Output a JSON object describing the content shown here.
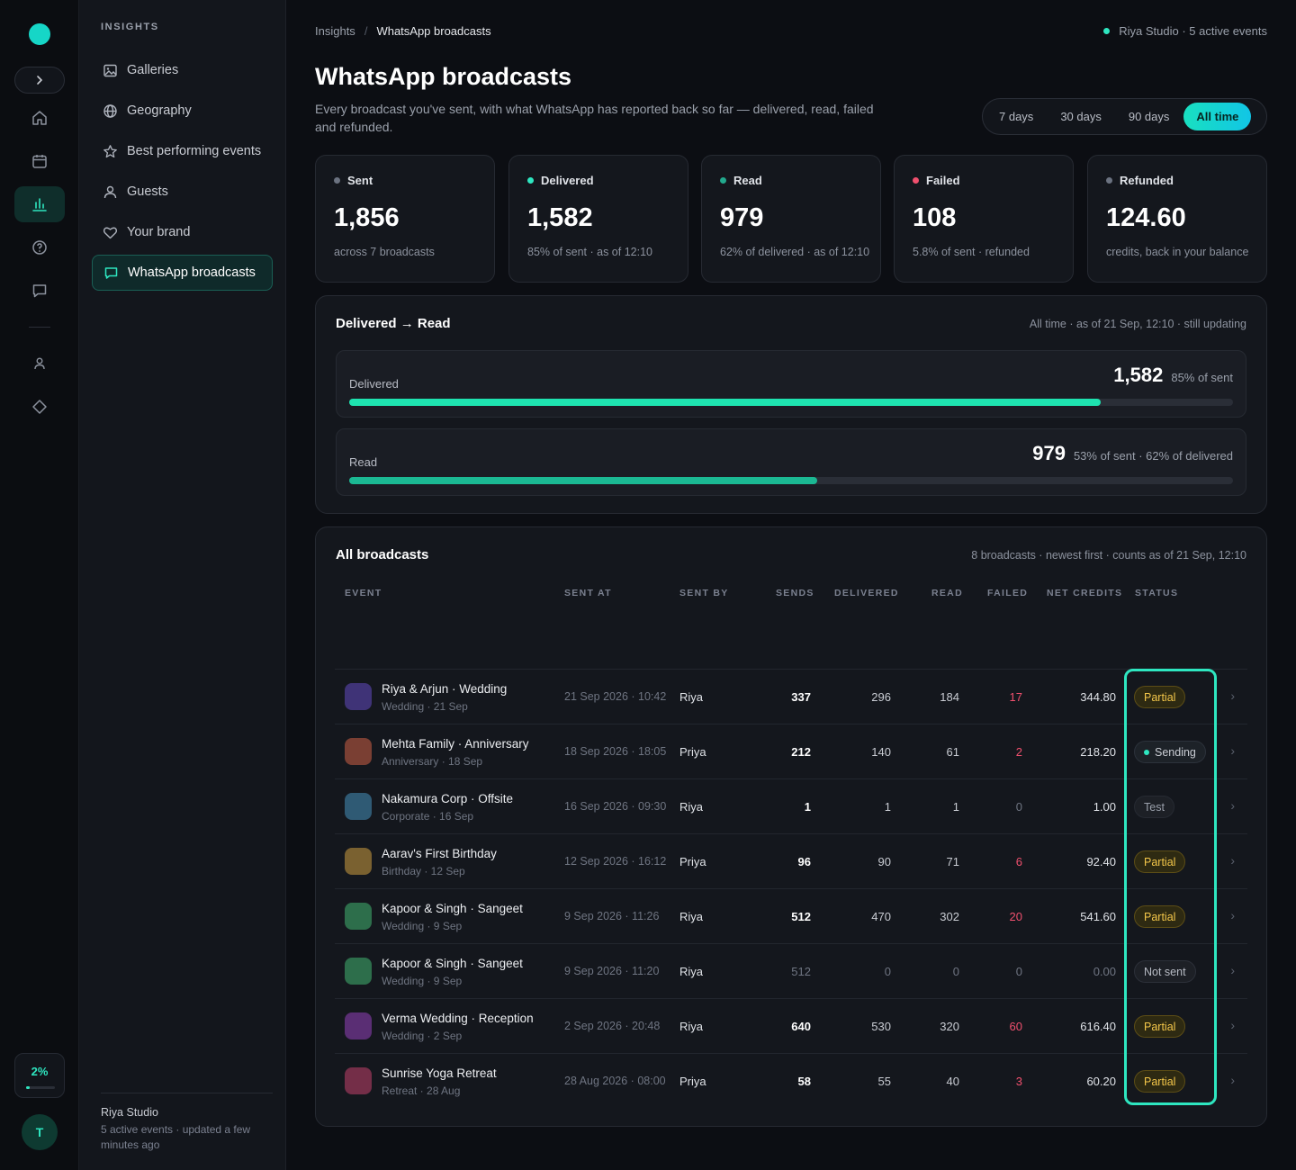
{
  "rail": {
    "usage": "2%",
    "usage_fraction": 0.02,
    "avatar_initial": "T"
  },
  "sidebar": {
    "section": "INSIGHTS",
    "items": [
      {
        "label": "Galleries",
        "icon": "image-icon"
      },
      {
        "label": "Geography",
        "icon": "globe-icon"
      },
      {
        "label": "Best performing events",
        "icon": "star-icon"
      },
      {
        "label": "Guests",
        "icon": "user-icon"
      },
      {
        "label": "Your brand",
        "icon": "heart-icon"
      },
      {
        "label": "WhatsApp broadcasts",
        "icon": "chat-icon",
        "active": true
      }
    ],
    "footer": {
      "org": "Riya Studio",
      "meta": "5 active events · updated a few minutes ago"
    }
  },
  "breadcrumb": {
    "parent": "Insights",
    "separator": "/",
    "current": "WhatsApp broadcasts"
  },
  "top_status": "Riya Studio · 5 active events",
  "page": {
    "title": "WhatsApp broadcasts",
    "subtitle": "Every broadcast you've sent, with what WhatsApp has reported back so far — delivered, read, failed and refunded."
  },
  "range": {
    "options": [
      "7 days",
      "30 days",
      "90 days",
      "All time"
    ],
    "selected": "All time"
  },
  "kpis": [
    {
      "label": "Sent",
      "value": "1,856",
      "note": "across 7 broadcasts",
      "color": "#6b7280"
    },
    {
      "label": "Delivered",
      "value": "1,582",
      "note": "85% of sent · as of 12:10",
      "color": "#2ee6c0"
    },
    {
      "label": "Read",
      "value": "979",
      "note": "62% of delivered · as of 12:10",
      "color": "#22a98d"
    },
    {
      "label": "Failed",
      "value": "108",
      "note": "5.8% of sent · refunded",
      "color": "#f0506e"
    },
    {
      "label": "Refunded",
      "value": "124.60",
      "note": "credits, back in your balance",
      "color": "#6b7280"
    }
  ],
  "funnel": {
    "title": "Delivered → Read",
    "meta": "All time · as of 21 Sep, 12:10 · still updating",
    "rows": [
      {
        "label": "Delivered",
        "value": "1,582",
        "sub": "85% of sent",
        "fraction": 0.85,
        "color": "#1ee3b0"
      },
      {
        "label": "Read",
        "value": "979",
        "sub": "53% of sent · 62% of delivered",
        "fraction": 0.53,
        "color": "#1bb893"
      }
    ]
  },
  "broadcasts": {
    "title": "All broadcasts",
    "meta": "8 broadcasts · newest first · counts as of 21 Sep, 12:10",
    "columns": [
      "EVENT",
      "SENT AT",
      "SENT BY",
      "SENDS",
      "DELIVERED",
      "READ",
      "FAILED",
      "NET CREDITS",
      "STATUS"
    ],
    "rows": [
      {
        "name": "Riya & Arjun · Wedding",
        "sub": "Wedding · 21 Sep",
        "sent_at": "21 Sep 2026 · 10:42",
        "sent_by": "Riya",
        "sends": "337",
        "delivered": "296",
        "read": "184",
        "failed": "17",
        "credits": "344.80",
        "status": "Partial",
        "kind": "partial",
        "thumb": "#3f3377"
      },
      {
        "name": "Mehta Family · Anniversary",
        "sub": "Anniversary · 18 Sep",
        "sent_at": "18 Sep 2026 · 18:05",
        "sent_by": "Priya",
        "sends": "212",
        "delivered": "140",
        "read": "61",
        "failed": "2",
        "credits": "218.20",
        "status": "Sending",
        "kind": "sending",
        "thumb": "#7a3f33"
      },
      {
        "name": "Nakamura Corp · Offsite",
        "sub": "Corporate · 16 Sep",
        "sent_at": "16 Sep 2026 · 09:30",
        "sent_by": "Riya",
        "sends": "1",
        "delivered": "1",
        "read": "1",
        "failed": "0",
        "credits": "1.00",
        "status": "Test",
        "kind": "test",
        "thumb": "#2f5a74"
      },
      {
        "name": "Aarav's First Birthday",
        "sub": "Birthday · 12 Sep",
        "sent_at": "12 Sep 2026 · 16:12",
        "sent_by": "Priya",
        "sends": "96",
        "delivered": "90",
        "read": "71",
        "failed": "6",
        "credits": "92.40",
        "status": "Partial",
        "kind": "partial",
        "thumb": "#7a6130"
      },
      {
        "name": "Kapoor & Singh · Sangeet",
        "sub": "Wedding · 9 Sep",
        "sent_at": "9 Sep 2026 · 11:26",
        "sent_by": "Riya",
        "sends": "512",
        "delivered": "470",
        "read": "302",
        "failed": "20",
        "credits": "541.60",
        "status": "Partial",
        "kind": "partial",
        "thumb": "#2d6e4b"
      },
      {
        "name": "Kapoor & Singh · Sangeet",
        "sub": "Wedding · 9 Sep",
        "sent_at": "9 Sep 2026 · 11:20",
        "sent_by": "Riya",
        "sends": "512",
        "delivered": "0",
        "read": "0",
        "failed": "0",
        "credits": "0.00",
        "status": "Not sent",
        "kind": "notsent",
        "thumb": "#2d6e4b"
      },
      {
        "name": "Verma Wedding · Reception",
        "sub": "Wedding · 2 Sep",
        "sent_at": "2 Sep 2026 · 20:48",
        "sent_by": "Riya",
        "sends": "640",
        "delivered": "530",
        "read": "320",
        "failed": "60",
        "credits": "616.40",
        "status": "Partial",
        "kind": "partial",
        "thumb": "#5a2e74"
      },
      {
        "name": "Sunrise Yoga Retreat",
        "sub": "Retreat · 28 Aug",
        "sent_at": "28 Aug 2026 · 08:00",
        "sent_by": "Priya",
        "sends": "58",
        "delivered": "55",
        "read": "40",
        "failed": "3",
        "credits": "60.20",
        "status": "Partial",
        "kind": "partial",
        "thumb": "#742e48"
      }
    ]
  },
  "colors": {
    "accent": "#2ee6c0",
    "failed": "#f0506e",
    "partial": "#f4c74a",
    "background": "#0c0e13"
  }
}
